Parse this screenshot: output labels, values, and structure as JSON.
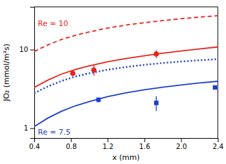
{
  "chart_data": {
    "type": "line",
    "x_label": "x (mm)",
    "y_label": "JO₂ (mmol/m²s)",
    "log": "y",
    "grid": false,
    "xlim": [
      0.4,
      2.4
    ],
    "ylim": [
      0.75,
      35
    ],
    "xticks": [
      0.4,
      0.8,
      1.2,
      1.6,
      {
        "value": 2.0,
        "label": "2.0"
      },
      2.4
    ],
    "yticks": [
      1,
      10
    ],
    "series": [
      {
        "type": "line",
        "color": "#e8231a",
        "line_style": "dashed",
        "x": [
          0.4,
          0.55,
          0.7,
          0.85,
          1.0,
          1.2,
          1.4,
          1.6,
          1.8,
          2.0,
          2.2,
          2.4
        ],
        "values": [
          9.5,
          11.5,
          13.5,
          15.2,
          16.8,
          18.8,
          20.5,
          22.0,
          23.4,
          24.7,
          25.9,
          27.0
        ]
      },
      {
        "type": "line",
        "color": "#e8231a",
        "line_style": "solid",
        "x": [
          0.4,
          0.55,
          0.7,
          0.85,
          1.0,
          1.2,
          1.4,
          1.6,
          1.8,
          2.0,
          2.2,
          2.4
        ],
        "values": [
          3.3,
          4.1,
          4.9,
          5.6,
          6.2,
          7.0,
          7.7,
          8.35,
          9.0,
          9.6,
          10.2,
          10.8
        ]
      },
      {
        "type": "line",
        "color": "#1e3fcc",
        "line_style": "dotted",
        "x": [
          0.4,
          0.55,
          0.7,
          0.85,
          1.0,
          1.2,
          1.4,
          1.6,
          1.8,
          2.0,
          2.2,
          2.4
        ],
        "values": [
          2.8,
          3.4,
          4.0,
          4.55,
          5.0,
          5.55,
          6.0,
          6.4,
          6.75,
          7.05,
          7.32,
          7.55
        ]
      },
      {
        "type": "line",
        "color": "#1e3fcc",
        "line_style": "solid",
        "x": [
          0.4,
          0.55,
          0.7,
          0.85,
          1.0,
          1.2,
          1.4,
          1.6,
          1.8,
          2.0,
          2.2,
          2.4
        ],
        "values": [
          1.05,
          1.35,
          1.65,
          1.93,
          2.18,
          2.52,
          2.82,
          3.08,
          3.32,
          3.55,
          3.76,
          3.95
        ]
      },
      {
        "type": "scatter",
        "color": "#e8231a",
        "marker": "circle",
        "x": [
          0.82,
          1.05,
          1.73
        ],
        "values": [
          5.0,
          5.5,
          8.8
        ],
        "errors": [
          0.4,
          0.85,
          1.0
        ]
      },
      {
        "type": "scatter",
        "color": "#1e3fcc",
        "marker": "square",
        "x": [
          1.1,
          1.73,
          2.37
        ],
        "values": [
          2.3,
          2.1,
          3.3
        ],
        "errors": [
          0.15,
          0.45,
          0.2
        ]
      }
    ],
    "annotations": [
      {
        "text": "Re = 10",
        "x": 0.44,
        "y": 20,
        "color": "#e8231a"
      },
      {
        "text": "Re = 7.5",
        "x": 0.44,
        "y": 0.83,
        "color": "#1e3fcc"
      }
    ]
  }
}
